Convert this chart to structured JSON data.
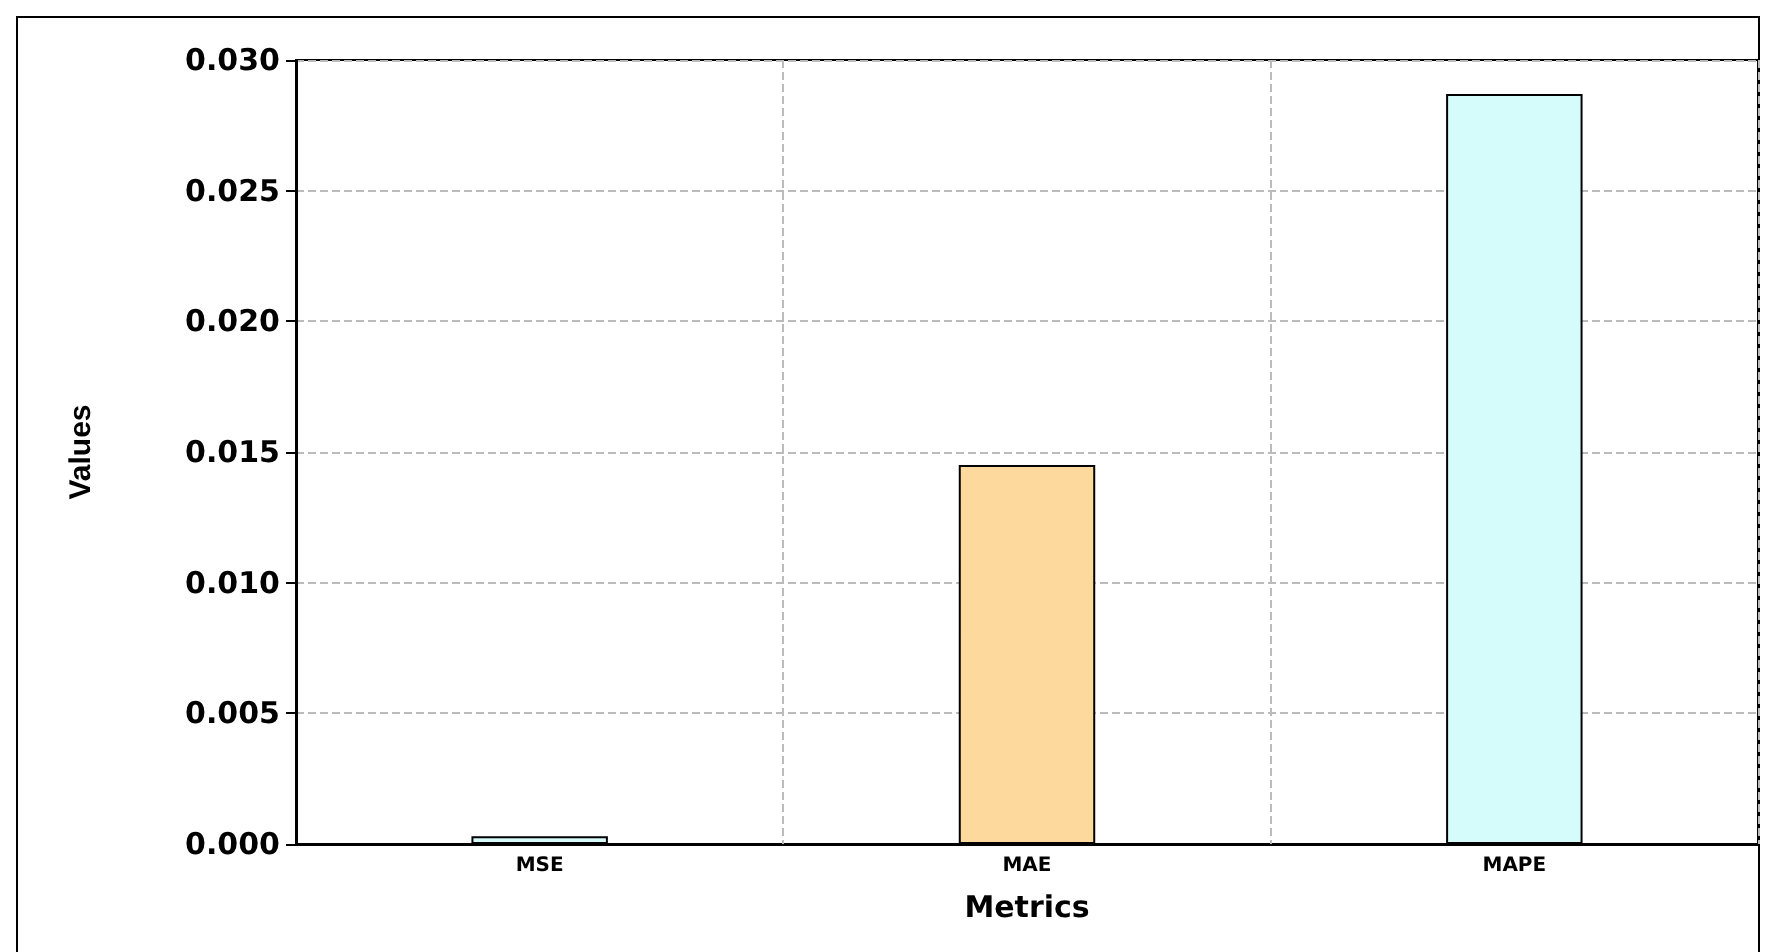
{
  "chart_data": {
    "type": "bar",
    "xlabel": "Metrics",
    "ylabel": "Values",
    "categories": [
      "MSE",
      "MAE",
      "MAPE"
    ],
    "values": [
      0.0003,
      0.0145,
      0.0287
    ],
    "colors": [
      "#d6fbfb",
      "#fdd99e",
      "#d6fbfb"
    ],
    "ylim": [
      0,
      0.03
    ],
    "yticks": [
      {
        "value": 0,
        "label": "0.000"
      },
      {
        "value": 0.005,
        "label": "0.005"
      },
      {
        "value": 0.01,
        "label": "0.010"
      },
      {
        "value": 0.015,
        "label": "0.015"
      },
      {
        "value": 0.02,
        "label": "0.020"
      },
      {
        "value": 0.025,
        "label": "0.025"
      },
      {
        "value": 0.03,
        "label": "0.030"
      }
    ],
    "grid": true
  }
}
